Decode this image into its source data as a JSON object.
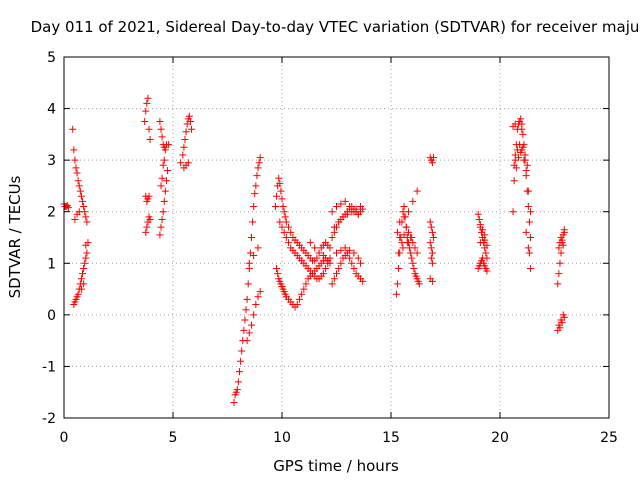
{
  "chart_data": {
    "type": "scatter",
    "title": "Day 011 of 2021, Sidereal Day-to-day VTEC variation (SDTVAR) for receiver maju",
    "xlabel": "GPS time / hours",
    "ylabel": "SDTVAR / TECUs",
    "xlim": [
      0,
      25
    ],
    "ylim": [
      -2,
      5
    ],
    "xticks": [
      "0",
      "5",
      "10",
      "15",
      "20",
      "25"
    ],
    "yticks": [
      "-2",
      "-1",
      "0",
      "1",
      "2",
      "3",
      "4",
      "5"
    ],
    "grid": true,
    "marker": "+",
    "color": "#ff0000",
    "series": [
      {
        "name": "SDTVAR",
        "x": [
          0.0,
          0.05,
          0.1,
          0.15,
          0.2,
          0.4,
          0.45,
          0.5,
          0.55,
          0.6,
          0.65,
          0.7,
          0.75,
          0.8,
          0.85,
          0.9,
          0.95,
          1.0,
          1.05,
          0.45,
          0.5,
          0.55,
          0.6,
          0.65,
          0.7,
          0.75,
          0.8,
          0.85,
          0.9,
          0.95,
          1.0,
          1.05,
          1.1,
          0.5,
          0.6,
          0.7,
          0.8,
          0.9,
          1.0,
          3.7,
          3.75,
          3.8,
          3.85,
          3.9,
          3.95,
          3.75,
          3.8,
          3.85,
          3.9,
          3.75,
          3.8,
          3.85,
          3.9,
          3.95,
          4.4,
          4.45,
          4.5,
          4.55,
          4.6,
          4.65,
          4.7,
          4.8,
          4.4,
          4.45,
          4.5,
          4.55,
          4.6,
          4.65,
          4.7,
          4.75,
          4.45,
          4.5,
          4.55,
          4.6,
          5.35,
          5.45,
          5.5,
          5.55,
          5.6,
          5.65,
          5.7,
          5.75,
          5.8,
          5.85,
          5.5,
          5.6,
          5.7,
          7.8,
          7.85,
          7.9,
          7.95,
          8.0,
          8.05,
          8.1,
          8.15,
          8.2,
          8.25,
          8.3,
          8.35,
          8.4,
          8.45,
          8.5,
          8.55,
          8.6,
          8.65,
          8.7,
          8.75,
          8.8,
          8.85,
          8.9,
          8.95,
          9.0,
          8.4,
          8.5,
          8.6,
          8.7,
          8.8,
          8.9,
          9.0,
          8.5,
          8.7,
          8.9,
          9.7,
          9.75,
          9.8,
          9.85,
          9.9,
          9.95,
          10.0,
          10.05,
          10.1,
          10.15,
          10.2,
          10.3,
          10.4,
          10.5,
          10.6,
          10.7,
          10.8,
          10.9,
          11.0,
          11.1,
          11.2,
          11.3,
          11.4,
          11.5,
          11.6,
          11.7,
          11.8,
          11.9,
          12.0,
          12.1,
          12.2,
          9.75,
          9.8,
          9.85,
          9.9,
          9.95,
          10.0,
          10.05,
          10.1,
          10.15,
          10.2,
          10.3,
          10.4,
          10.5,
          10.6,
          10.7,
          10.8,
          10.9,
          11.0,
          11.1,
          11.2,
          11.3,
          11.4,
          11.5,
          11.6,
          11.7,
          11.8,
          11.9,
          12.0,
          12.1,
          12.2,
          9.9,
          10.0,
          10.1,
          10.2,
          10.3,
          10.4,
          10.5,
          10.6,
          10.7,
          10.8,
          10.9,
          11.0,
          11.1,
          11.2,
          11.3,
          11.4,
          11.5,
          11.6,
          11.7,
          11.8,
          11.9,
          12.0,
          12.1,
          12.2,
          11.3,
          11.5,
          11.7,
          11.9,
          12.1,
          12.3,
          12.4,
          12.5,
          12.6,
          12.7,
          12.8,
          12.9,
          13.0,
          13.1,
          13.2,
          13.3,
          13.4,
          13.5,
          13.6,
          13.7,
          12.3,
          12.4,
          12.5,
          12.6,
          12.7,
          12.8,
          12.9,
          13.0,
          13.1,
          13.2,
          13.3,
          13.4,
          13.5,
          13.6,
          13.7,
          12.4,
          12.6,
          12.8,
          13.0,
          13.2,
          13.4,
          13.6,
          12.5,
          12.7,
          12.9,
          13.1,
          13.3,
          13.5,
          13.6,
          12.3,
          12.5,
          12.7,
          12.9,
          13.1,
          13.3,
          13.5,
          15.25,
          15.3,
          15.35,
          15.4,
          15.45,
          15.5,
          15.55,
          15.6,
          15.65,
          15.7,
          15.75,
          15.8,
          15.85,
          15.9,
          15.95,
          16.0,
          16.05,
          16.1,
          16.15,
          16.2,
          16.25,
          16.3,
          15.3,
          15.4,
          15.5,
          15.6,
          15.7,
          15.8,
          15.9,
          16.0,
          16.1,
          16.2,
          15.4,
          15.6,
          15.8,
          16.0,
          16.2,
          15.35,
          15.55,
          15.75,
          15.95,
          16.8,
          16.85,
          16.9,
          16.95,
          16.8,
          16.85,
          16.9,
          16.95,
          16.8,
          16.85,
          16.9,
          16.85,
          16.9,
          16.8,
          16.9,
          19.0,
          19.05,
          19.1,
          19.15,
          19.2,
          19.25,
          19.3,
          19.35,
          19.4,
          19.0,
          19.05,
          19.1,
          19.15,
          19.2,
          19.25,
          19.3,
          19.35,
          19.4,
          19.1,
          19.2,
          19.3,
          19.4,
          19.1,
          19.2,
          19.3,
          20.6,
          20.65,
          20.7,
          20.75,
          20.8,
          20.85,
          20.9,
          20.95,
          21.0,
          21.05,
          21.1,
          21.15,
          21.2,
          21.25,
          21.3,
          21.35,
          21.4,
          20.7,
          20.8,
          20.9,
          21.0,
          21.1,
          21.2,
          21.3,
          21.4,
          20.65,
          20.75,
          20.85,
          20.95,
          21.05,
          21.15,
          21.25,
          21.35,
          20.6,
          20.7,
          21.0,
          21.2,
          21.3,
          21.4,
          22.65,
          22.7,
          22.75,
          22.8,
          22.85,
          22.9,
          22.95,
          22.7,
          22.8,
          22.9,
          22.7,
          22.75,
          22.8,
          22.85,
          22.9,
          22.95,
          22.65,
          22.75,
          22.85,
          22.95
        ],
        "y": [
          2.15,
          2.1,
          2.1,
          2.12,
          2.08,
          3.6,
          3.2,
          3.0,
          2.85,
          2.75,
          2.6,
          2.5,
          2.4,
          2.3,
          2.2,
          2.1,
          2.0,
          1.9,
          1.8,
          0.2,
          0.25,
          0.3,
          0.35,
          0.4,
          0.5,
          0.6,
          0.7,
          0.8,
          0.9,
          1.0,
          1.1,
          1.2,
          1.4,
          1.85,
          1.95,
          2.0,
          0.5,
          0.6,
          1.35,
          3.75,
          3.95,
          4.1,
          4.2,
          3.6,
          3.4,
          2.3,
          2.2,
          2.25,
          2.3,
          1.6,
          1.7,
          1.8,
          1.9,
          1.85,
          3.75,
          3.6,
          3.45,
          3.3,
          3.25,
          3.2,
          3.3,
          3.3,
          1.55,
          1.7,
          1.85,
          2.0,
          2.2,
          2.4,
          2.6,
          2.8,
          2.5,
          2.65,
          2.9,
          3.0,
          2.95,
          3.1,
          3.25,
          3.4,
          3.55,
          3.7,
          3.8,
          3.85,
          3.75,
          3.6,
          2.85,
          2.9,
          2.95,
          -1.7,
          -1.55,
          -1.5,
          -1.45,
          -1.3,
          -1.1,
          -0.9,
          -0.7,
          -0.5,
          -0.3,
          -0.1,
          0.1,
          0.3,
          0.6,
          0.9,
          1.2,
          1.5,
          1.8,
          2.1,
          2.35,
          2.5,
          2.7,
          2.85,
          2.95,
          3.05,
          -0.5,
          -0.35,
          -0.2,
          0.0,
          0.2,
          0.35,
          0.45,
          1.0,
          1.15,
          1.3,
          2.1,
          2.3,
          2.5,
          2.65,
          2.55,
          2.4,
          2.25,
          2.1,
          2.0,
          1.9,
          1.8,
          1.7,
          1.6,
          1.5,
          1.45,
          1.4,
          1.35,
          1.3,
          1.25,
          1.2,
          1.15,
          1.1,
          1.05,
          1.05,
          1.1,
          1.2,
          1.3,
          1.35,
          1.4,
          1.35,
          1.3,
          0.9,
          0.8,
          0.7,
          0.65,
          0.6,
          0.55,
          0.5,
          0.45,
          0.4,
          0.35,
          0.3,
          0.25,
          0.2,
          0.15,
          0.2,
          0.3,
          0.4,
          0.5,
          0.6,
          0.7,
          0.75,
          0.8,
          0.85,
          0.9,
          0.95,
          1.0,
          1.05,
          1.1,
          1.05,
          1.0,
          1.8,
          1.7,
          1.6,
          1.5,
          1.4,
          1.3,
          1.25,
          1.2,
          1.15,
          1.1,
          1.05,
          1.0,
          0.95,
          0.9,
          0.85,
          0.8,
          0.75,
          0.7,
          0.7,
          0.75,
          0.8,
          0.9,
          1.0,
          1.1,
          1.4,
          1.3,
          1.2,
          1.15,
          1.05,
          1.5,
          1.6,
          1.7,
          1.8,
          1.85,
          1.9,
          1.95,
          2.0,
          2.05,
          2.1,
          2.05,
          2.0,
          1.95,
          2.0,
          2.05,
          0.6,
          0.7,
          0.8,
          0.9,
          1.0,
          1.1,
          1.15,
          1.2,
          1.1,
          1.0,
          0.9,
          0.8,
          0.75,
          0.7,
          0.65,
          1.7,
          1.8,
          1.9,
          1.95,
          2.0,
          2.05,
          2.1,
          1.2,
          1.25,
          1.3,
          1.25,
          1.2,
          1.1,
          1.0,
          2.0,
          2.1,
          2.15,
          2.2,
          2.1,
          2.0,
          1.95,
          0.4,
          0.6,
          0.9,
          1.2,
          1.5,
          1.8,
          2.0,
          2.1,
          1.9,
          1.7,
          1.5,
          1.4,
          1.3,
          1.2,
          1.1,
          1.0,
          0.9,
          0.8,
          0.75,
          0.7,
          0.65,
          0.6,
          1.6,
          1.5,
          1.4,
          1.55,
          1.7,
          1.6,
          1.5,
          1.4,
          1.3,
          1.2,
          1.8,
          1.9,
          2.0,
          2.2,
          2.4,
          1.2,
          1.3,
          1.4,
          1.5,
          3.05,
          3.0,
          2.95,
          3.05,
          1.8,
          1.7,
          1.6,
          1.5,
          1.4,
          1.3,
          1.2,
          1.1,
          1.0,
          0.7,
          0.65,
          1.95,
          1.85,
          1.75,
          1.6,
          1.5,
          1.4,
          1.3,
          1.2,
          1.1,
          0.9,
          0.95,
          1.0,
          1.05,
          1.1,
          1.0,
          0.95,
          0.9,
          0.85,
          1.4,
          1.5,
          1.45,
          1.35,
          1.7,
          1.65,
          1.55,
          2.0,
          2.6,
          3.0,
          3.3,
          3.6,
          3.7,
          3.75,
          3.8,
          3.7,
          3.5,
          3.3,
          3.0,
          2.7,
          2.4,
          2.1,
          1.8,
          1.5,
          3.1,
          3.2,
          3.3,
          3.2,
          3.0,
          2.8,
          2.4,
          2.0,
          2.9,
          2.85,
          3.05,
          3.15,
          3.25,
          3.1,
          2.9,
          1.2,
          3.65,
          3.7,
          3.6,
          1.6,
          1.3,
          0.9,
          0.6,
          0.8,
          1.0,
          1.2,
          1.4,
          1.55,
          1.65,
          -0.2,
          -0.1,
          0.0,
          1.3,
          1.4,
          1.5,
          1.45,
          1.35,
          1.6,
          -0.3,
          -0.25,
          -0.15,
          -0.05
        ]
      }
    ]
  }
}
